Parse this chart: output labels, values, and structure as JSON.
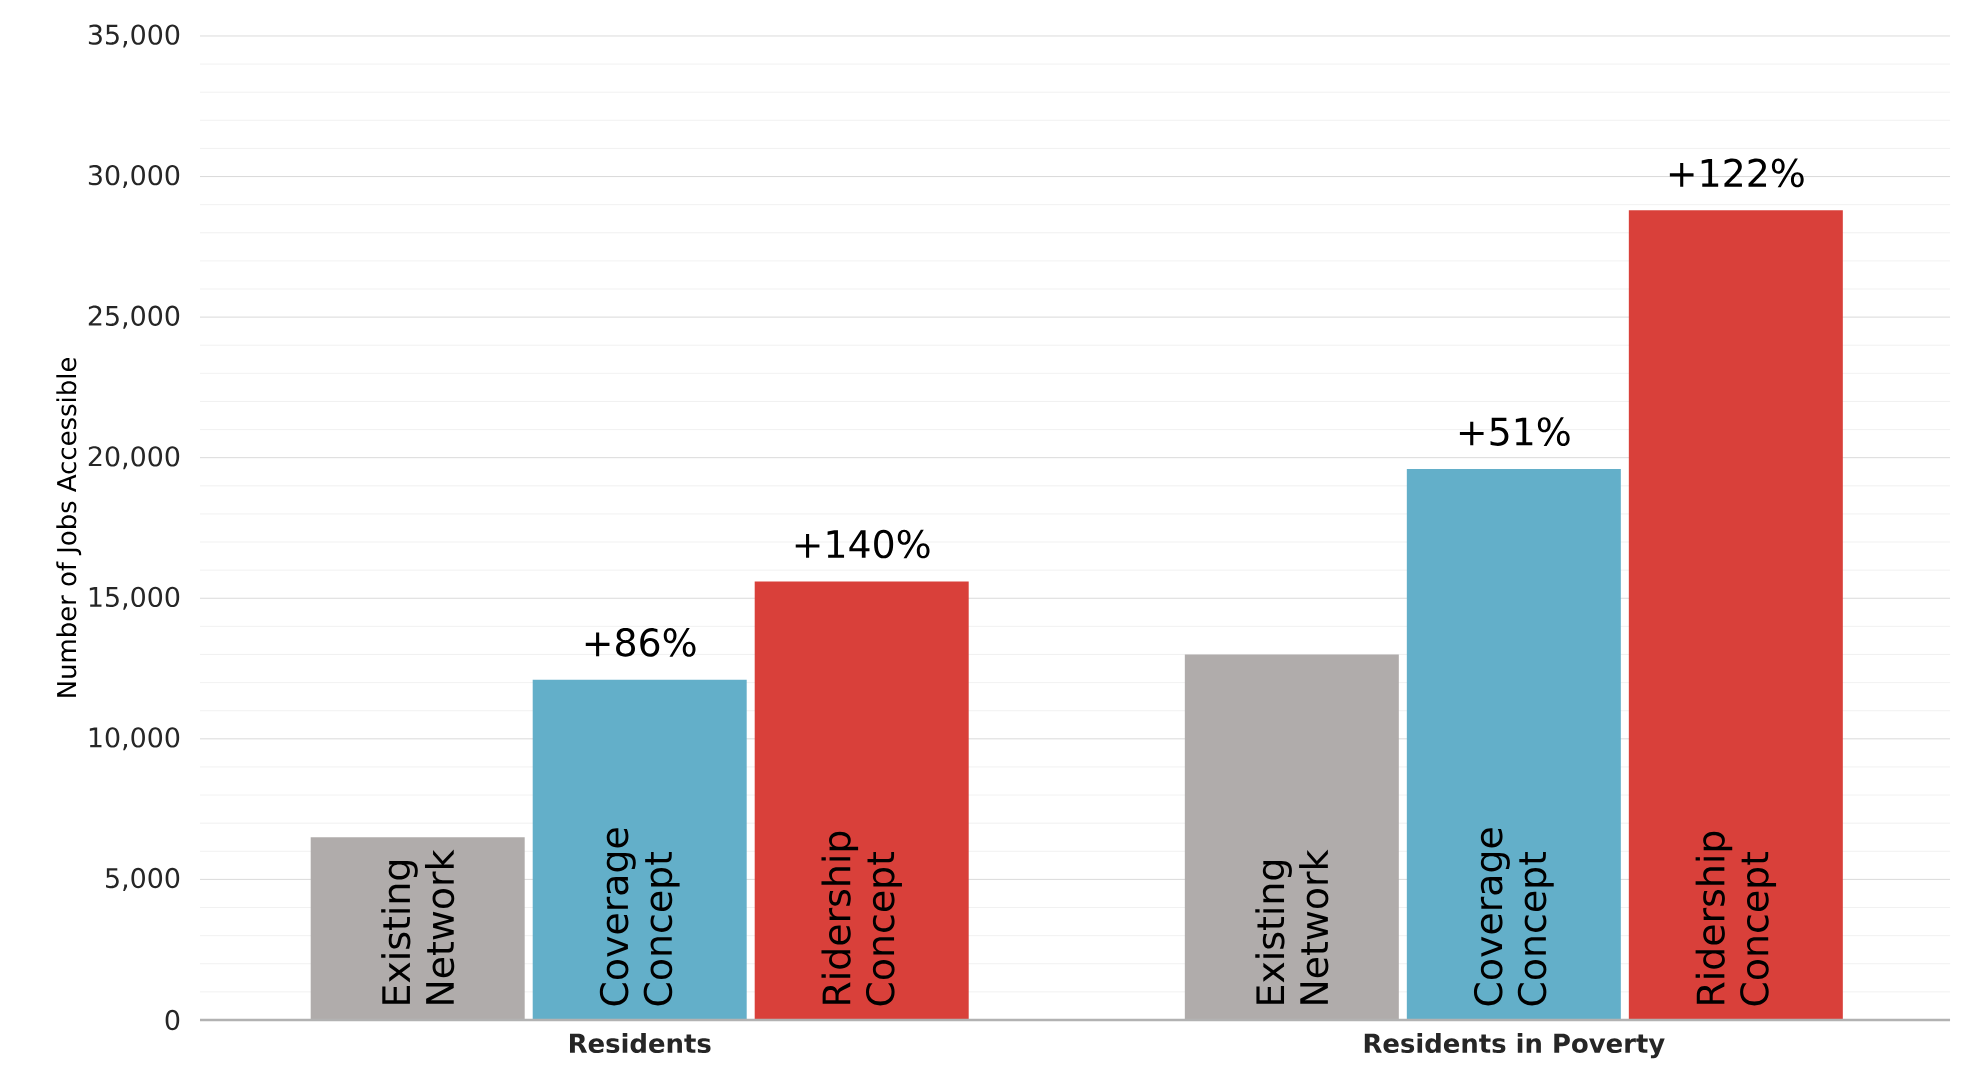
{
  "chart_data": {
    "type": "bar",
    "ylabel": "Number of Jobs Accessible",
    "categories": [
      "Residents",
      "Residents in Poverty"
    ],
    "series": [
      {
        "name": "Existing Network",
        "color": "#b0acab",
        "values": [
          6500,
          13000
        ]
      },
      {
        "name": "Coverage Concept",
        "color": "#63afc9",
        "values": [
          12100,
          19600
        ]
      },
      {
        "name": "Ridership Concept",
        "color": "#d9403a",
        "values": [
          15600,
          28800
        ]
      }
    ],
    "annotations": [
      "+86%",
      "+140%",
      "+51%",
      "+122%"
    ],
    "ylim": [
      0,
      35000
    ],
    "yticks": [
      0,
      {
        "value": 5000,
        "label": "5,000"
      },
      {
        "value": 10000,
        "label": "10,000"
      },
      {
        "value": 15000,
        "label": "15,000"
      },
      {
        "value": 20000,
        "label": "20,000"
      },
      {
        "value": 25000,
        "label": "25,000"
      },
      {
        "value": 30000,
        "label": "30,000"
      },
      {
        "value": 35000,
        "label": "35,000"
      }
    ],
    "grid": "y"
  }
}
